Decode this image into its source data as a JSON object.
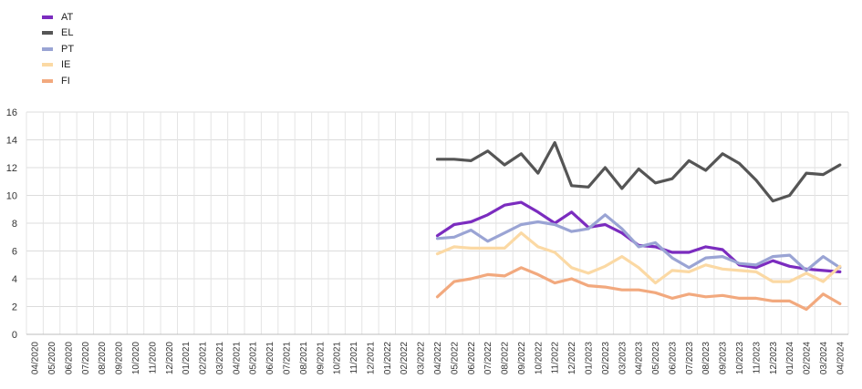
{
  "chart_data": {
    "type": "line",
    "title": "",
    "xlabel": "",
    "ylabel": "",
    "ylim": [
      0,
      16
    ],
    "yticks": [
      0,
      2,
      4,
      6,
      8,
      10,
      12,
      14,
      16
    ],
    "grid": true,
    "legend_position": "top-left",
    "x": [
      "04/2020",
      "05/2020",
      "06/2020",
      "07/2020",
      "08/2020",
      "09/2020",
      "10/2020",
      "11/2020",
      "12/2020",
      "01/2021",
      "02/2021",
      "03/2021",
      "04/2021",
      "05/2021",
      "06/2021",
      "07/2021",
      "08/2021",
      "09/2021",
      "10/2021",
      "11/2021",
      "12/2021",
      "01/2022",
      "02/2022",
      "03/2022",
      "04/2022",
      "05/2022",
      "06/2022",
      "07/2022",
      "08/2022",
      "09/2022",
      "10/2022",
      "11/2022",
      "12/2022",
      "01/2023",
      "02/2023",
      "03/2023",
      "04/2023",
      "05/2023",
      "06/2023",
      "07/2023",
      "08/2023",
      "09/2023",
      "10/2023",
      "11/2023",
      "12/2023",
      "01/2024",
      "02/2024",
      "03/2024",
      "04/2024"
    ],
    "series": [
      {
        "name": "AT",
        "color": "#7B2CBF",
        "values": [
          null,
          null,
          null,
          null,
          null,
          null,
          null,
          null,
          null,
          null,
          null,
          null,
          null,
          null,
          null,
          null,
          null,
          null,
          null,
          null,
          null,
          null,
          null,
          null,
          7.1,
          7.9,
          8.1,
          8.6,
          9.3,
          9.5,
          8.8,
          8.0,
          8.8,
          7.7,
          7.9,
          7.3,
          6.4,
          6.3,
          5.9,
          5.9,
          6.3,
          6.1,
          5.0,
          4.8,
          5.3,
          4.9,
          4.7,
          4.6,
          4.5
        ]
      },
      {
        "name": "EL",
        "color": "#555555",
        "values": [
          null,
          null,
          null,
          null,
          null,
          null,
          null,
          null,
          null,
          null,
          null,
          null,
          null,
          null,
          null,
          null,
          null,
          null,
          null,
          null,
          null,
          null,
          null,
          null,
          12.6,
          12.6,
          12.5,
          13.2,
          12.2,
          13.0,
          11.6,
          13.8,
          10.7,
          10.6,
          12.0,
          10.5,
          11.9,
          10.9,
          11.2,
          12.5,
          11.8,
          13.0,
          12.3,
          11.1,
          9.6,
          10.0,
          11.6,
          11.5,
          12.2
        ]
      },
      {
        "name": "PT",
        "color": "#9AA4D4",
        "values": [
          null,
          null,
          null,
          null,
          null,
          null,
          null,
          null,
          null,
          null,
          null,
          null,
          null,
          null,
          null,
          null,
          null,
          null,
          null,
          null,
          null,
          null,
          null,
          null,
          6.9,
          7.0,
          7.5,
          6.7,
          7.3,
          7.9,
          8.1,
          7.9,
          7.4,
          7.6,
          8.6,
          7.6,
          6.3,
          6.6,
          5.5,
          4.8,
          5.5,
          5.6,
          5.1,
          5.0,
          5.6,
          5.7,
          4.6,
          5.6,
          4.8
        ]
      },
      {
        "name": "IE",
        "color": "#FBD9A4",
        "values": [
          null,
          null,
          null,
          null,
          null,
          null,
          null,
          null,
          null,
          null,
          null,
          null,
          null,
          null,
          null,
          null,
          null,
          null,
          null,
          null,
          null,
          null,
          null,
          null,
          5.8,
          6.3,
          6.2,
          6.2,
          6.2,
          7.3,
          6.3,
          5.9,
          4.8,
          4.4,
          4.9,
          5.6,
          4.8,
          3.7,
          4.6,
          4.5,
          5.0,
          4.7,
          4.6,
          4.5,
          3.8,
          3.8,
          4.4,
          3.8,
          4.9
        ]
      },
      {
        "name": "FI",
        "color": "#F2A97E",
        "values": [
          null,
          null,
          null,
          null,
          null,
          null,
          null,
          null,
          null,
          null,
          null,
          null,
          null,
          null,
          null,
          null,
          null,
          null,
          null,
          null,
          null,
          null,
          null,
          null,
          2.7,
          3.8,
          4.0,
          4.3,
          4.2,
          4.8,
          4.3,
          3.7,
          4.0,
          3.5,
          3.4,
          3.2,
          3.2,
          3.0,
          2.6,
          2.9,
          2.7,
          2.8,
          2.6,
          2.6,
          2.4,
          2.4,
          1.8,
          2.9,
          2.2
        ]
      }
    ]
  }
}
